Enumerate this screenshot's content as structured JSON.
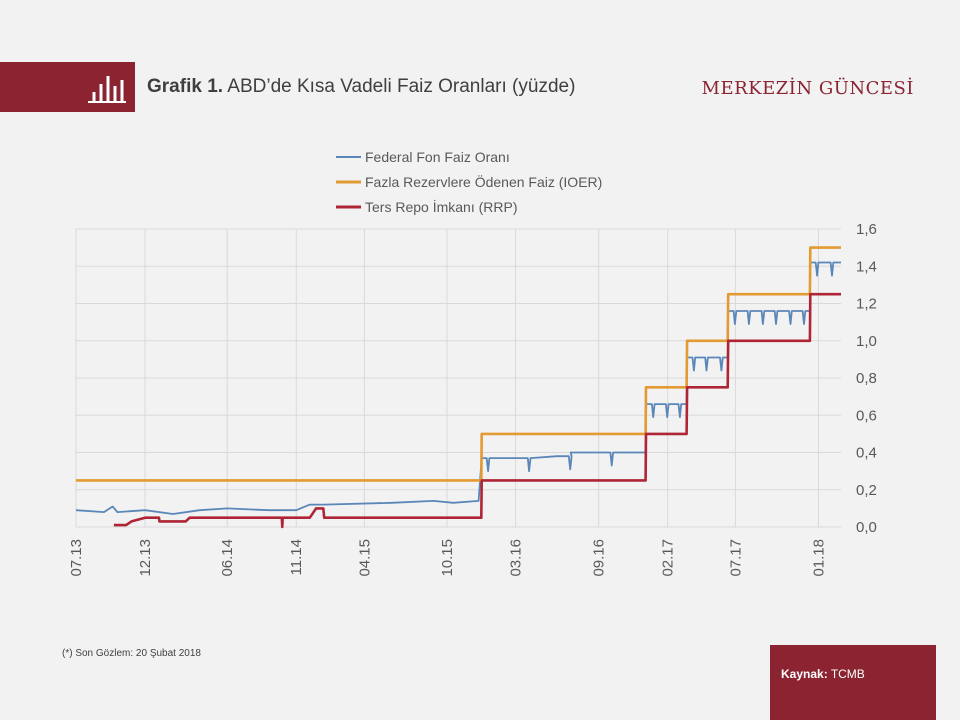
{
  "header": {
    "title_bold": "Grafik 1.",
    "title_text": "ABD’de Kısa Vadeli Faiz Oranları (yüzde)",
    "brand": "MERKEZİN GÜNCESİ",
    "logo_icon": "bar-chart-icon"
  },
  "footnote": "(*) Son Gözlem: 20 Şubat 2018",
  "source": {
    "label": "Kaynak:",
    "value": "TCMB"
  },
  "colors": {
    "brand": "#8b2331",
    "fed": "#5b87b8",
    "ioer": "#e29a32",
    "rrp": "#b02535",
    "grid": "#d9d9d9"
  },
  "chart_data": {
    "type": "line",
    "x_format": "YYYY-MM-DD",
    "x_range": [
      "2013-07-01",
      "2018-02-20"
    ],
    "ylim": [
      0,
      1.6
    ],
    "y_ticks": [
      "0,0",
      "0,2",
      "0,4",
      "0,6",
      "0,8",
      "1,0",
      "1,2",
      "1,4",
      "1,6"
    ],
    "x_ticks": [
      {
        "label": "07.13",
        "date": "2013-07-01"
      },
      {
        "label": "12.13",
        "date": "2013-12-01"
      },
      {
        "label": "06.14",
        "date": "2014-06-01"
      },
      {
        "label": "11.14",
        "date": "2014-11-01"
      },
      {
        "label": "04.15",
        "date": "2015-04-01"
      },
      {
        "label": "10.15",
        "date": "2015-10-01"
      },
      {
        "label": "03.16",
        "date": "2016-03-01"
      },
      {
        "label": "09.16",
        "date": "2016-09-01"
      },
      {
        "label": "02.17",
        "date": "2017-02-01"
      },
      {
        "label": "07.17",
        "date": "2017-07-01"
      },
      {
        "label": "01.18",
        "date": "2018-01-01"
      }
    ],
    "y_axis_position": "right",
    "grid": true,
    "legend_position": "top-center",
    "series": [
      {
        "name": "Federal Fon Faiz Oranı",
        "color": "#5b87b8",
        "points": [
          [
            "2013-07-01",
            0.09
          ],
          [
            "2013-09-01",
            0.08
          ],
          [
            "2013-09-20",
            0.11
          ],
          [
            "2013-10-01",
            0.08
          ],
          [
            "2013-12-01",
            0.09
          ],
          [
            "2014-02-01",
            0.07
          ],
          [
            "2014-04-01",
            0.09
          ],
          [
            "2014-06-01",
            0.1
          ],
          [
            "2014-09-01",
            0.09
          ],
          [
            "2014-11-01",
            0.09
          ],
          [
            "2014-12-01",
            0.12
          ],
          [
            "2015-01-01",
            0.12
          ],
          [
            "2015-06-01",
            0.13
          ],
          [
            "2015-09-01",
            0.14
          ],
          [
            "2015-10-15",
            0.13
          ],
          [
            "2015-12-10",
            0.14
          ],
          [
            "2015-12-17",
            0.37
          ],
          [
            "2016-03-01",
            0.37
          ],
          [
            "2016-06-01",
            0.38
          ],
          [
            "2016-07-01",
            0.4
          ],
          [
            "2016-12-14",
            0.4
          ],
          [
            "2016-12-15",
            0.66
          ],
          [
            "2017-03-15",
            0.66
          ],
          [
            "2017-03-16",
            0.91
          ],
          [
            "2017-06-14",
            0.91
          ],
          [
            "2017-06-15",
            1.16
          ],
          [
            "2017-12-13",
            1.16
          ],
          [
            "2017-12-14",
            1.42
          ],
          [
            "2018-02-20",
            1.42
          ]
        ],
        "dips": [
          "2015-12-31",
          "2016-03-31",
          "2016-06-30",
          "2016-09-30",
          "2016-12-31",
          "2017-01-31",
          "2017-02-28",
          "2017-03-31",
          "2017-04-28",
          "2017-05-31",
          "2017-06-30",
          "2017-07-31",
          "2017-08-31",
          "2017-09-29",
          "2017-10-31",
          "2017-11-30",
          "2017-12-29",
          "2018-01-31"
        ]
      },
      {
        "name": "Fazla Rezervlere Ödenen Faiz (IOER)",
        "color": "#e29a32",
        "points": [
          [
            "2013-07-01",
            0.25
          ],
          [
            "2015-12-16",
            0.25
          ],
          [
            "2015-12-17",
            0.5
          ],
          [
            "2016-12-14",
            0.5
          ],
          [
            "2016-12-15",
            0.75
          ],
          [
            "2017-03-15",
            0.75
          ],
          [
            "2017-03-16",
            1.0
          ],
          [
            "2017-06-14",
            1.0
          ],
          [
            "2017-06-15",
            1.25
          ],
          [
            "2017-12-13",
            1.25
          ],
          [
            "2017-12-14",
            1.5
          ],
          [
            "2018-02-20",
            1.5
          ]
        ]
      },
      {
        "name": "Ters Repo İmkanı (RRP)",
        "color": "#b02535",
        "points": [
          [
            "2013-09-23",
            0.01
          ],
          [
            "2013-10-20",
            0.01
          ],
          [
            "2013-11-01",
            0.03
          ],
          [
            "2013-12-01",
            0.05
          ],
          [
            "2014-01-01",
            0.05
          ],
          [
            "2014-01-02",
            0.03
          ],
          [
            "2014-03-01",
            0.03
          ],
          [
            "2014-03-10",
            0.05
          ],
          [
            "2014-09-30",
            0.05
          ],
          [
            "2014-10-01",
            0.0
          ],
          [
            "2014-10-02",
            0.05
          ],
          [
            "2014-12-01",
            0.05
          ],
          [
            "2014-12-15",
            0.1
          ],
          [
            "2014-12-31",
            0.1
          ],
          [
            "2015-01-02",
            0.05
          ],
          [
            "2015-12-16",
            0.05
          ],
          [
            "2015-12-17",
            0.25
          ],
          [
            "2016-12-14",
            0.25
          ],
          [
            "2016-12-15",
            0.5
          ],
          [
            "2017-03-15",
            0.5
          ],
          [
            "2017-03-16",
            0.75
          ],
          [
            "2017-06-14",
            0.75
          ],
          [
            "2017-06-15",
            1.0
          ],
          [
            "2017-12-13",
            1.0
          ],
          [
            "2017-12-14",
            1.25
          ],
          [
            "2018-02-20",
            1.25
          ]
        ]
      }
    ]
  }
}
